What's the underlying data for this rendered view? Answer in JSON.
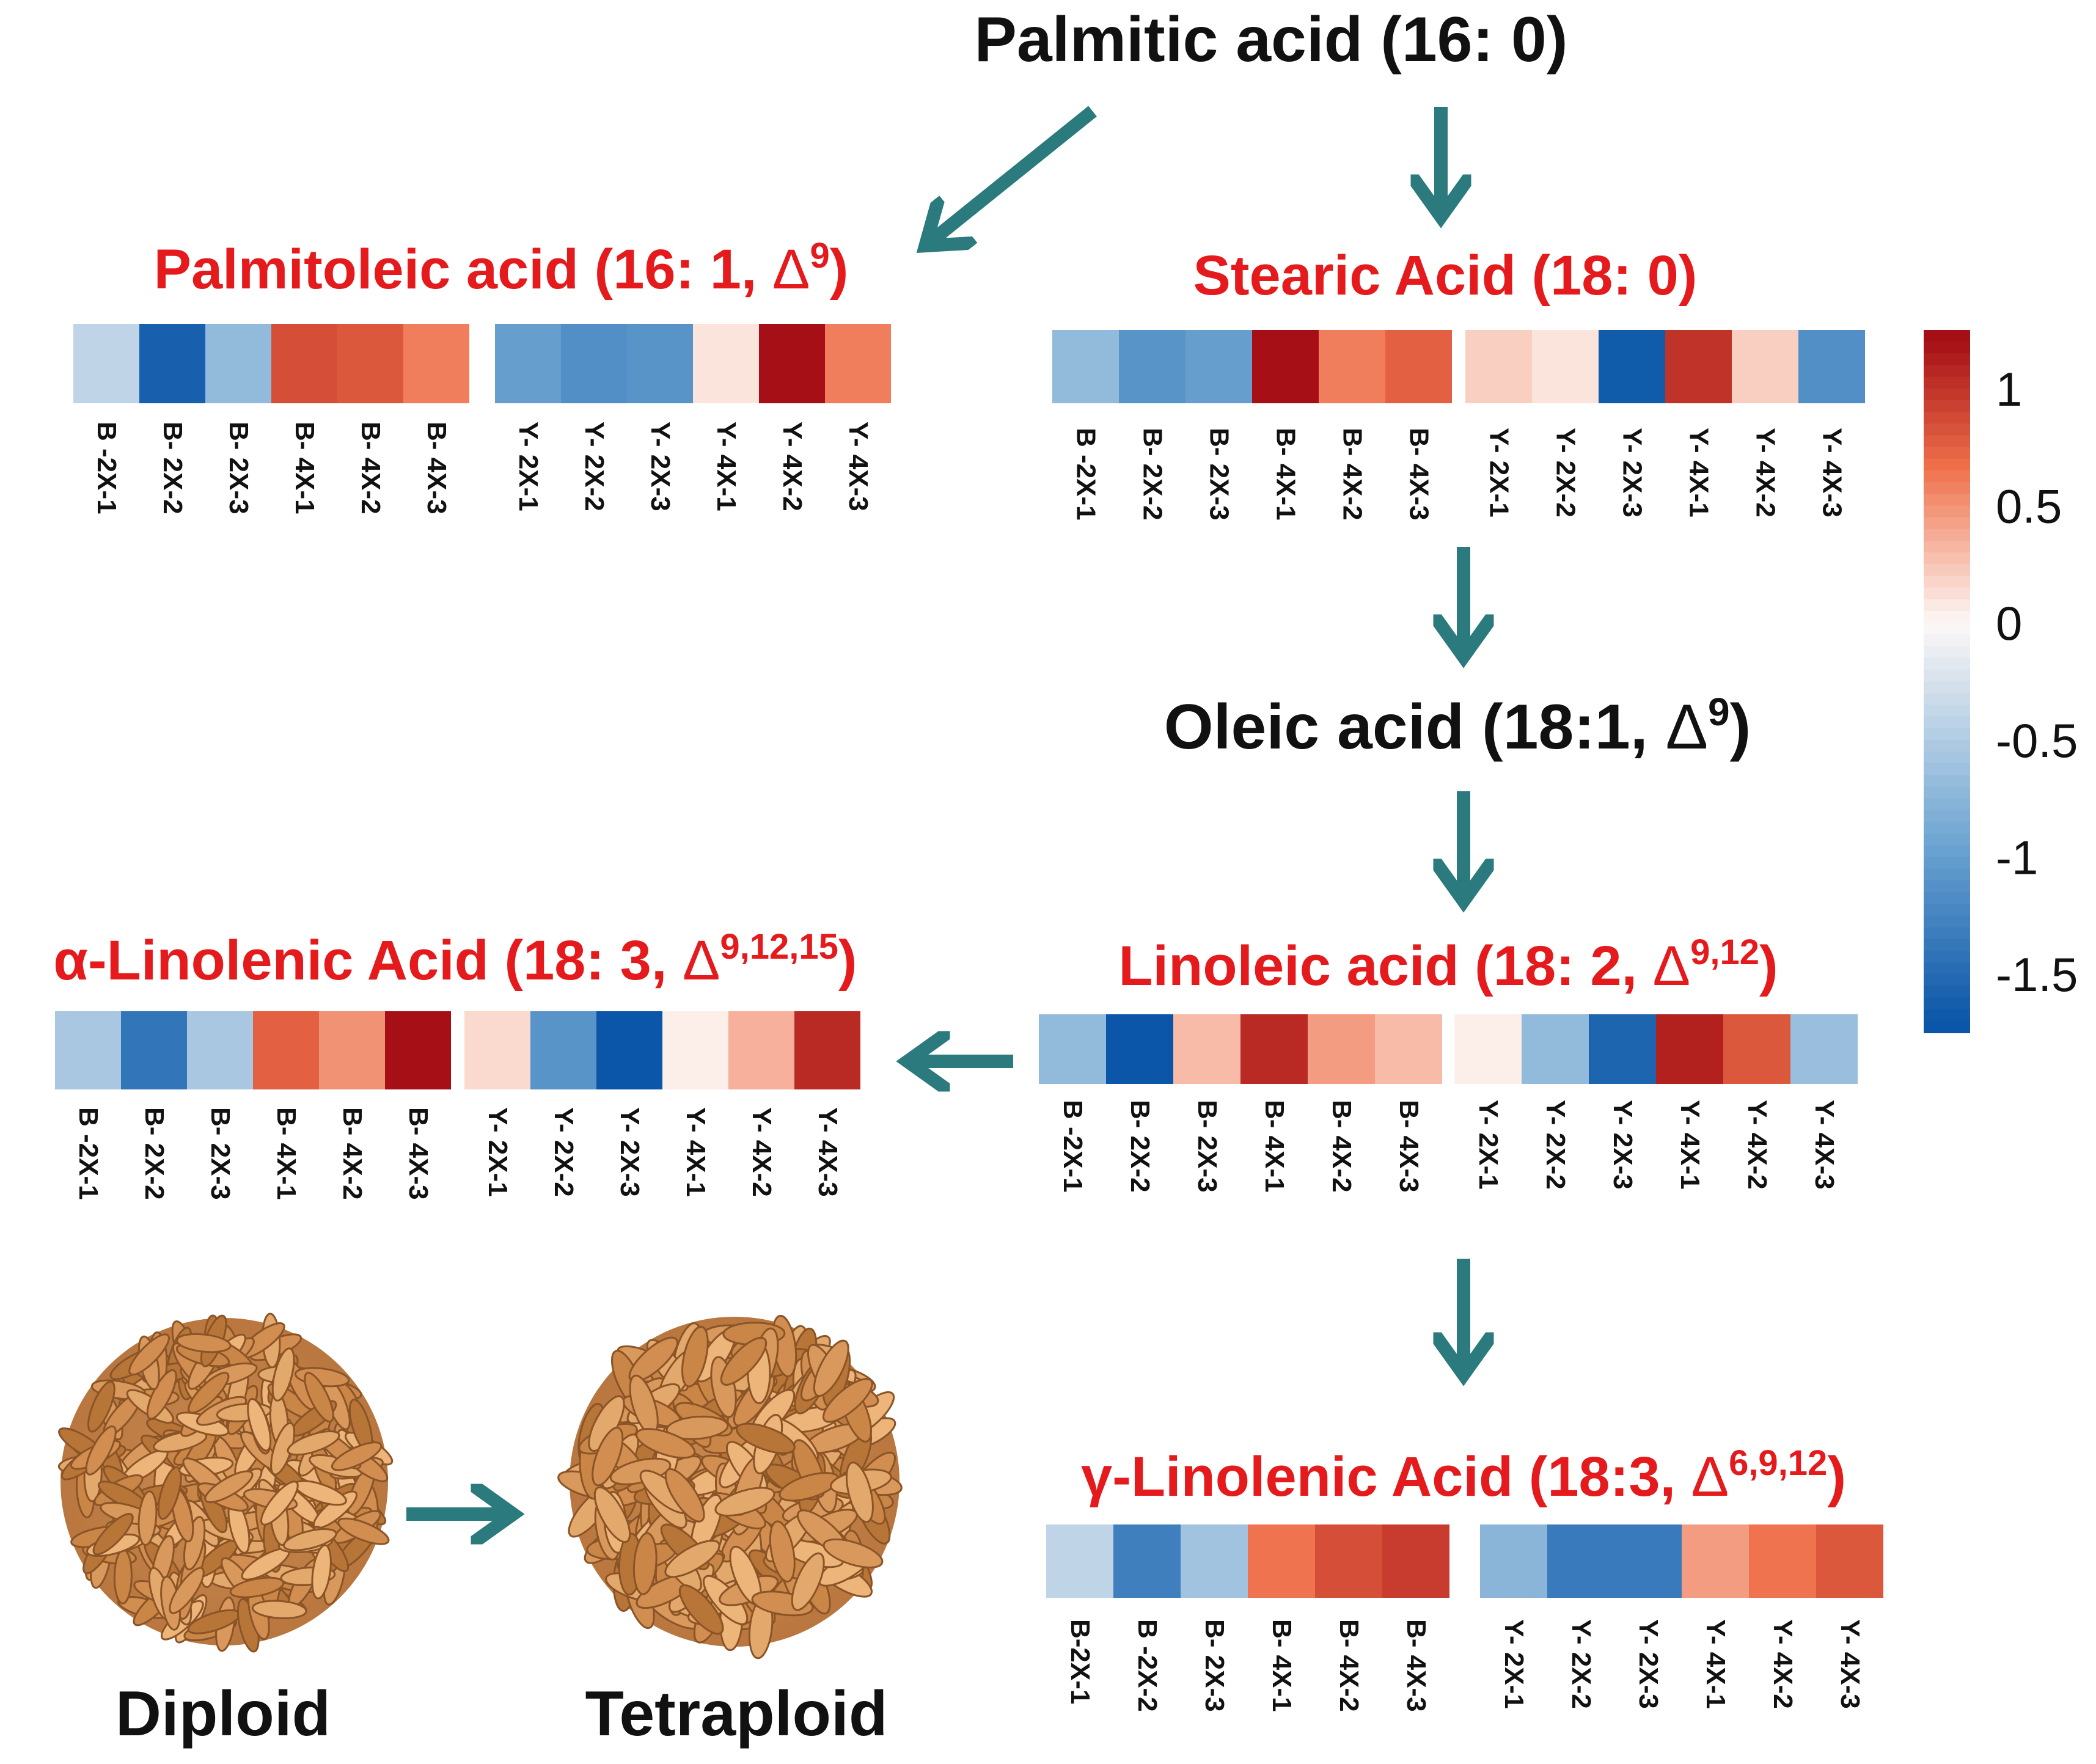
{
  "nodes": {
    "palmitic": {
      "name": "Palmitic acid (16: 0)",
      "delta": "",
      "close": ""
    },
    "palmitoleic": {
      "name": "Palmitoleic acid (16: 1, ",
      "delta": "Δ",
      "sup": "9",
      "close": ")"
    },
    "stearic": {
      "name": "Stearic Acid (18: 0)",
      "delta": "",
      "close": ""
    },
    "oleic": {
      "name": "Oleic acid (18:1,  ",
      "delta": "Δ",
      "sup": "9",
      "close": ")"
    },
    "linoleic": {
      "name": "Linoleic acid (18: 2,  ",
      "delta": "Δ",
      "sup": "9,12",
      "close": ")"
    },
    "alpha": {
      "name": "α-Linolenic Acid (18: 3,  ",
      "delta": "Δ",
      "sup": "9,12,15",
      "close": ")"
    },
    "gamma": {
      "name": "γ-Linolenic Acid (18:3,  ",
      "delta": "Δ",
      "sup": "6,9,12",
      "close": ")"
    }
  },
  "samples": {
    "palmitoleic": [
      "B -2X-1",
      "B- 2X-2",
      "B- 2X-3",
      "B- 4X-1",
      "B- 4X-2",
      "B- 4X-3",
      "Y- 2X-1",
      "Y- 2X-2",
      "Y- 2X-3",
      "Y- 4X-1",
      "Y- 4X-2",
      "Y- 4X-3"
    ],
    "stearic": [
      "B -2X-1",
      "B- 2X-2",
      "B- 2X-3",
      "B- 4X-1",
      "B- 4X-2",
      "B- 4X-3",
      "Y- 2X-1",
      "Y- 2X-2",
      "Y- 2X-3",
      "Y- 4X-1",
      "Y- 4X-2",
      "Y- 4X-3"
    ],
    "linoleic": [
      "B -2X-1",
      "B- 2X-2",
      "B- 2X-3",
      "B- 4X-1",
      "B- 4X-2",
      "B- 4X-3",
      "Y- 2X-1",
      "Y- 2X-2",
      "Y- 2X-3",
      "Y- 4X-1",
      "Y- 4X-2",
      "Y- 4X-3"
    ],
    "alpha": [
      "B -2X-1",
      "B- 2X-2",
      "B- 2X-3",
      "B- 4X-1",
      "B- 4X-2",
      "B- 4X-3",
      "Y- 2X-1",
      "Y- 2X-2",
      "Y- 2X-3",
      "Y- 4X-1",
      "Y- 4X-2",
      "Y- 4X-3"
    ],
    "gamma": [
      "B-2X-1",
      "B -2X-2",
      "B- 2X-3",
      "B- 4X-1",
      "B- 4X-2",
      "B- 4X-3",
      "Y- 2X-1",
      "Y- 2X-2",
      "Y- 2X-3",
      "Y- 4X-1",
      "Y- 4X-2",
      "Y- 4X-3"
    ]
  },
  "heat": {
    "palmitoleic": [
      -0.4,
      -1.6,
      -0.7,
      0.85,
      0.8,
      0.6,
      -1.0,
      -1.15,
      -1.1,
      0.1,
      1.2,
      0.6
    ],
    "stearic": [
      -0.7,
      -1.1,
      -1.0,
      1.2,
      0.6,
      0.75,
      0.2,
      0.1,
      -1.65,
      1.0,
      0.2,
      -1.15
    ],
    "linoleic": [
      -0.7,
      -1.7,
      0.3,
      1.05,
      0.45,
      0.3,
      0.05,
      -0.7,
      -1.55,
      1.1,
      0.8,
      -0.65
    ],
    "alpha": [
      -0.55,
      -1.4,
      -0.55,
      0.75,
      0.5,
      1.2,
      0.15,
      -1.1,
      -1.7,
      0.05,
      0.35,
      1.05
    ],
    "gamma": [
      -0.4,
      -1.3,
      -0.6,
      0.65,
      0.85,
      0.95,
      -0.75,
      -1.35,
      -1.35,
      0.45,
      0.65,
      0.8
    ]
  },
  "legend": {
    "ticks": [
      "1",
      "0.5",
      "0",
      "-0.5",
      "-1",
      "-1.5"
    ],
    "tick_values": [
      1,
      0.5,
      0,
      -0.5,
      -1,
      -1.5
    ],
    "range": [
      -1.75,
      1.25
    ]
  },
  "labels": {
    "diploid": "Diploid",
    "tetraploid": "Tetraploid"
  },
  "colors": {
    "arrow": "#2b7a7e",
    "red_text": "#e41a1c",
    "high": "#a50f15",
    "mid": "#fdf8f6",
    "low": "#0b56a8"
  }
}
